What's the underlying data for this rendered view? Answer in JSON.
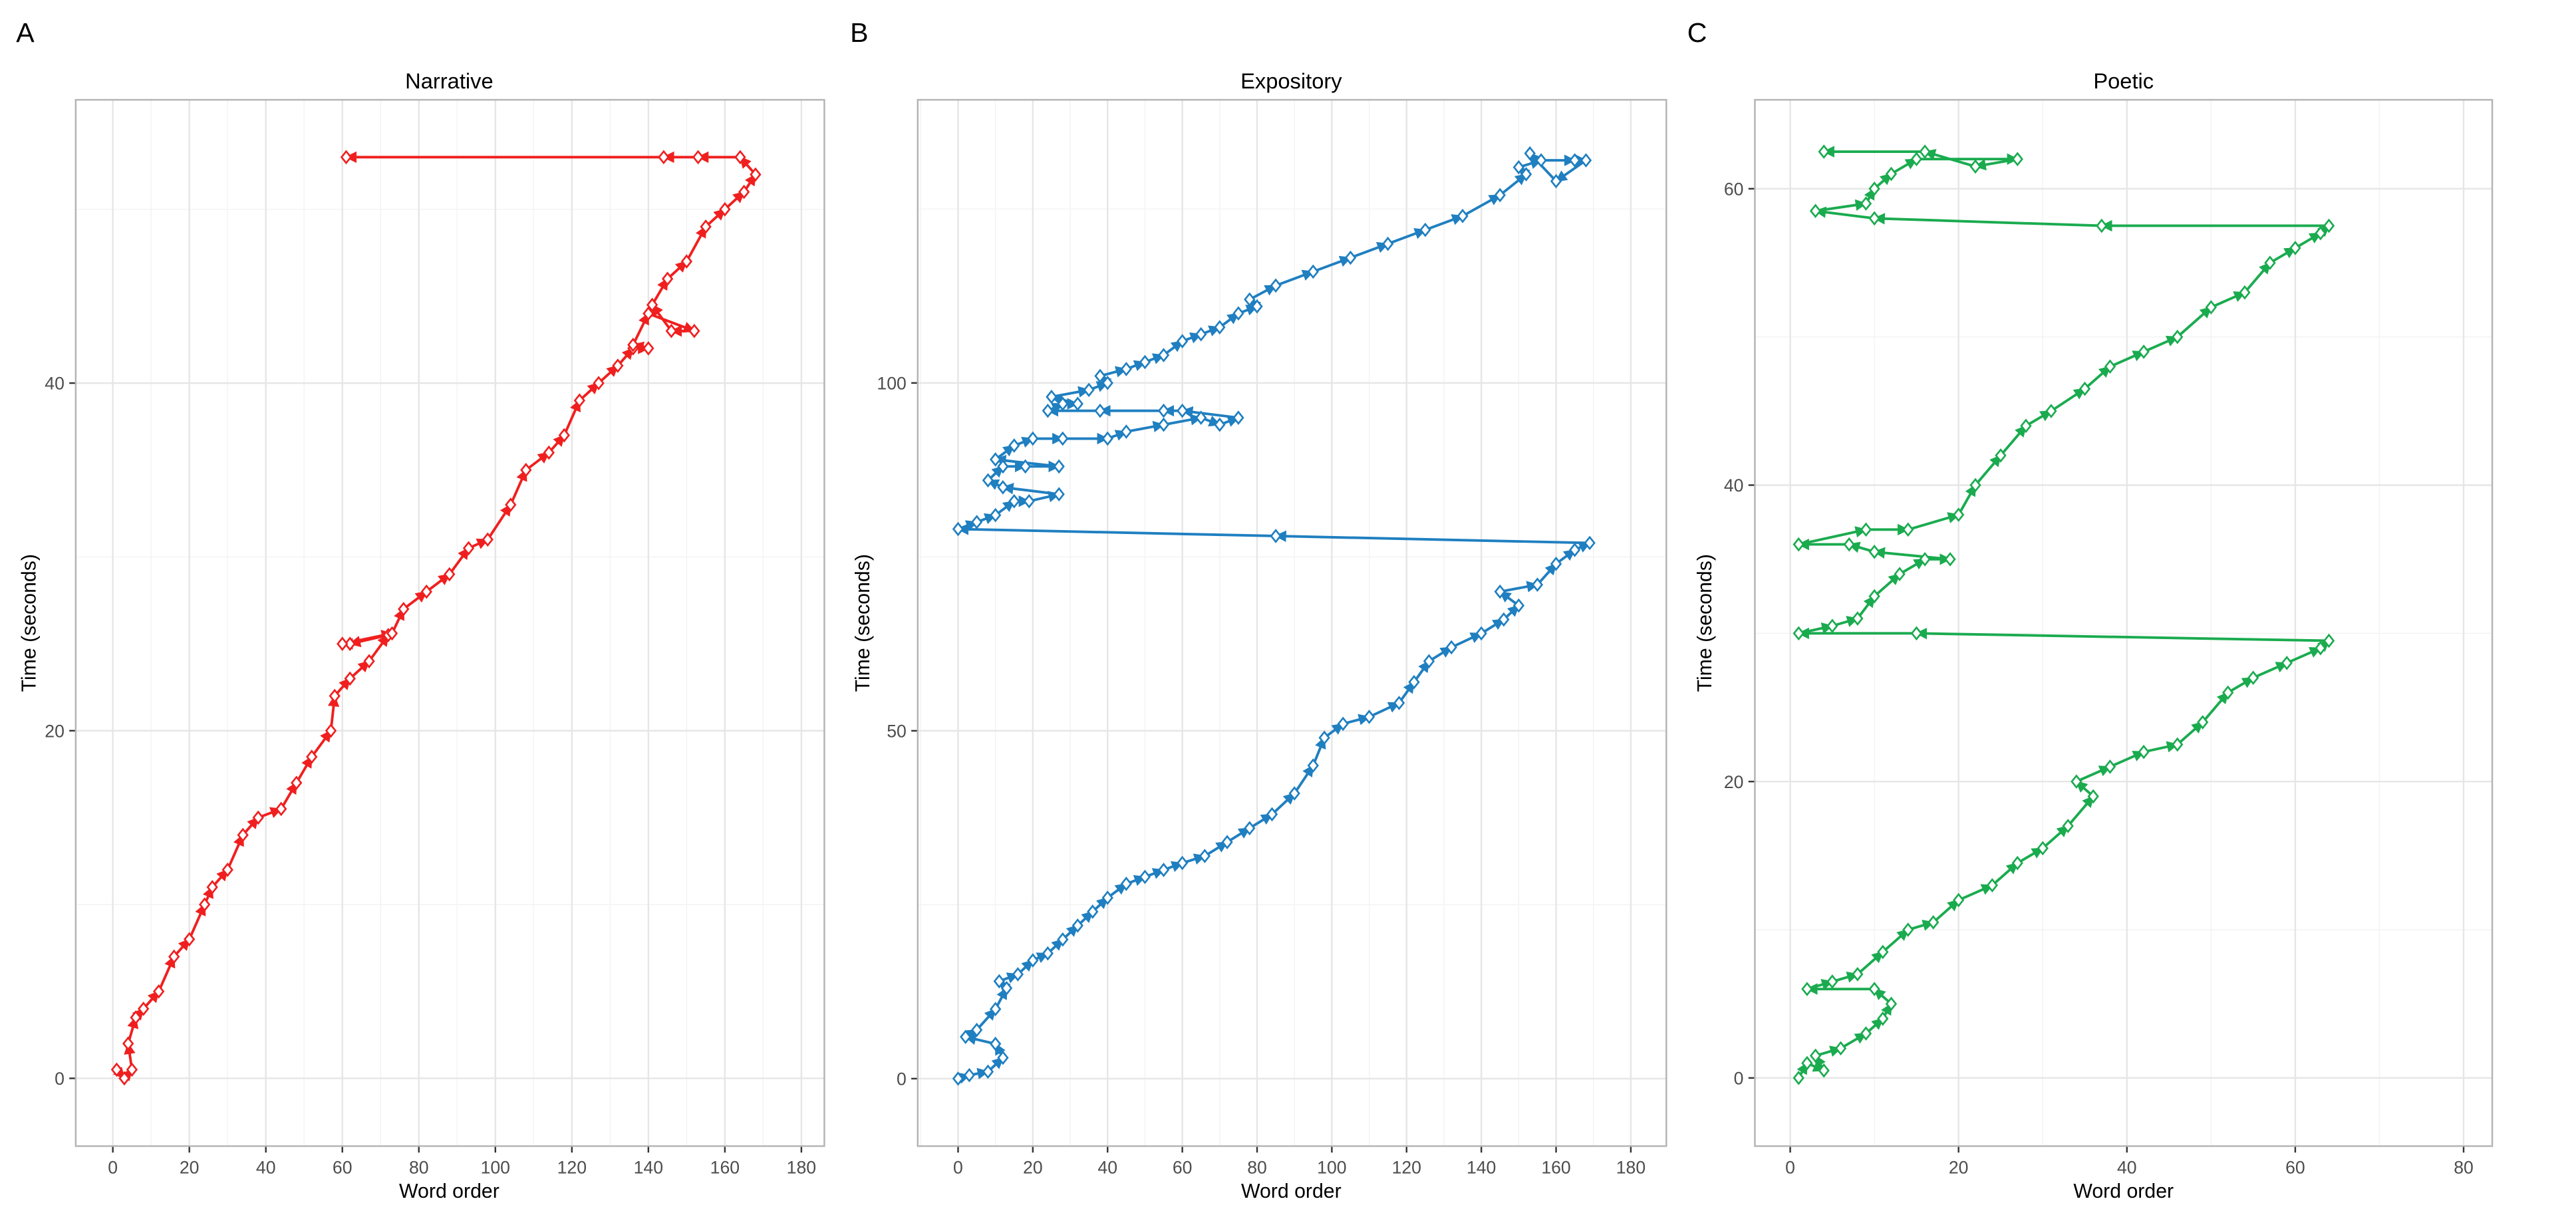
{
  "chart_data": [
    {
      "panel_label": "A",
      "type": "line",
      "title": "Narrative",
      "xlabel": "Word order",
      "ylabel": "Time (seconds)",
      "xlim": [
        -9.7,
        186
      ],
      "ylim": [
        -3.9,
        56.3
      ],
      "xticks": [
        0,
        20,
        40,
        60,
        80,
        100,
        120,
        140,
        160,
        180
      ],
      "yticks": [
        0,
        20,
        40
      ],
      "grid": true,
      "color": "#f01f1f",
      "points": [
        [
          1,
          0.5
        ],
        [
          3,
          0
        ],
        [
          5,
          0.5
        ],
        [
          4,
          2
        ],
        [
          6,
          3.5
        ],
        [
          8,
          4
        ],
        [
          12,
          5
        ],
        [
          16,
          7
        ],
        [
          20,
          8
        ],
        [
          24,
          10
        ],
        [
          26,
          11
        ],
        [
          30,
          12
        ],
        [
          34,
          14
        ],
        [
          38,
          15
        ],
        [
          44,
          15.5
        ],
        [
          48,
          17
        ],
        [
          52,
          18.5
        ],
        [
          57,
          20
        ],
        [
          58,
          22
        ],
        [
          62,
          23
        ],
        [
          67,
          24
        ],
        [
          72,
          25.5
        ],
        [
          62,
          25
        ],
        [
          60,
          25
        ],
        [
          73,
          25.6
        ],
        [
          76,
          27
        ],
        [
          82,
          28
        ],
        [
          88,
          29
        ],
        [
          93,
          30.5
        ],
        [
          98,
          31
        ],
        [
          104,
          33
        ],
        [
          108,
          35
        ],
        [
          114,
          36
        ],
        [
          118,
          37
        ],
        [
          122,
          39
        ],
        [
          127,
          40
        ],
        [
          132,
          41
        ],
        [
          136,
          42
        ],
        [
          140,
          42
        ],
        [
          136,
          42.2
        ],
        [
          140,
          44
        ],
        [
          152,
          43
        ],
        [
          146,
          43
        ],
        [
          141,
          44.5
        ],
        [
          145,
          46
        ],
        [
          150,
          47
        ],
        [
          155,
          49
        ],
        [
          160,
          50
        ],
        [
          165,
          51
        ],
        [
          168,
          52
        ],
        [
          164,
          53
        ],
        [
          153,
          53
        ],
        [
          144,
          53
        ],
        [
          61,
          53
        ]
      ]
    },
    {
      "panel_label": "B",
      "type": "line",
      "title": "Expository",
      "xlabel": "Word order",
      "ylabel": "Time (seconds)",
      "xlim": [
        -10.8,
        189.5
      ],
      "ylim": [
        -9.7,
        140.7
      ],
      "xticks": [
        0,
        20,
        40,
        60,
        80,
        100,
        120,
        140,
        160,
        180
      ],
      "yticks": [
        0,
        50,
        100
      ],
      "grid": true,
      "color": "#1f7fc0",
      "points": [
        [
          0,
          0
        ],
        [
          3,
          0.5
        ],
        [
          8,
          1
        ],
        [
          12,
          3
        ],
        [
          10,
          5
        ],
        [
          2,
          6
        ],
        [
          5,
          7
        ],
        [
          10,
          10
        ],
        [
          13,
          13
        ],
        [
          11,
          14
        ],
        [
          16,
          15
        ],
        [
          20,
          17
        ],
        [
          24,
          18
        ],
        [
          28,
          20
        ],
        [
          32,
          22
        ],
        [
          36,
          24
        ],
        [
          40,
          26
        ],
        [
          45,
          28
        ],
        [
          50,
          29
        ],
        [
          55,
          30
        ],
        [
          60,
          31
        ],
        [
          66,
          32
        ],
        [
          72,
          34
        ],
        [
          78,
          36
        ],
        [
          84,
          38
        ],
        [
          90,
          41
        ],
        [
          95,
          45
        ],
        [
          98,
          49
        ],
        [
          103,
          51
        ],
        [
          110,
          52
        ],
        [
          118,
          54
        ],
        [
          122,
          57
        ],
        [
          126,
          60
        ],
        [
          132,
          62
        ],
        [
          140,
          64
        ],
        [
          146,
          66
        ],
        [
          150,
          68
        ],
        [
          145,
          70
        ],
        [
          155,
          71
        ],
        [
          160,
          74
        ],
        [
          165,
          76
        ],
        [
          169,
          77
        ],
        [
          85,
          78
        ],
        [
          0,
          79
        ],
        [
          5,
          80
        ],
        [
          10,
          81
        ],
        [
          15,
          83
        ],
        [
          19,
          83
        ],
        [
          27,
          84
        ],
        [
          12,
          85
        ],
        [
          8,
          86
        ],
        [
          12,
          88
        ],
        [
          18,
          88
        ],
        [
          27,
          88
        ],
        [
          10,
          89
        ],
        [
          15,
          91
        ],
        [
          20,
          92
        ],
        [
          28,
          92
        ],
        [
          40,
          92
        ],
        [
          45,
          93
        ],
        [
          55,
          94
        ],
        [
          65,
          95
        ],
        [
          70,
          94
        ],
        [
          75,
          95
        ],
        [
          60,
          96
        ],
        [
          55,
          96
        ],
        [
          38,
          96
        ],
        [
          24,
          96
        ],
        [
          28,
          97
        ],
        [
          32,
          97
        ],
        [
          25,
          98
        ],
        [
          35,
          99
        ],
        [
          40,
          100
        ],
        [
          38,
          101
        ],
        [
          45,
          102
        ],
        [
          50,
          103
        ],
        [
          55,
          104
        ],
        [
          60,
          106
        ],
        [
          65,
          107
        ],
        [
          70,
          108
        ],
        [
          75,
          110
        ],
        [
          80,
          111
        ],
        [
          78,
          112
        ],
        [
          85,
          114
        ],
        [
          95,
          116
        ],
        [
          105,
          118
        ],
        [
          115,
          120
        ],
        [
          125,
          122
        ],
        [
          135,
          124
        ],
        [
          145,
          127
        ],
        [
          152,
          130
        ],
        [
          150,
          131
        ],
        [
          156,
          132
        ],
        [
          165,
          132
        ],
        [
          168,
          132
        ],
        [
          160,
          129
        ],
        [
          153,
          133
        ]
      ]
    },
    {
      "panel_label": "C",
      "type": "line",
      "title": "Poetic",
      "xlabel": "Word order",
      "ylabel": "Time (seconds)",
      "xlim": [
        -4.2,
        83.4
      ],
      "ylim": [
        -4.6,
        66
      ],
      "xticks": [
        0,
        20,
        40,
        60,
        80
      ],
      "yticks": [
        0,
        20,
        40,
        60
      ],
      "grid": true,
      "color": "#1aab4f",
      "points": [
        [
          1,
          0
        ],
        [
          2,
          1
        ],
        [
          4,
          0.5
        ],
        [
          3,
          1.5
        ],
        [
          6,
          2
        ],
        [
          9,
          3
        ],
        [
          11,
          4
        ],
        [
          12,
          5
        ],
        [
          10,
          6
        ],
        [
          2,
          6
        ],
        [
          5,
          6.5
        ],
        [
          8,
          7
        ],
        [
          11,
          8.5
        ],
        [
          14,
          10
        ],
        [
          17,
          10.5
        ],
        [
          20,
          12
        ],
        [
          24,
          13
        ],
        [
          27,
          14.5
        ],
        [
          30,
          15.5
        ],
        [
          33,
          17
        ],
        [
          36,
          19
        ],
        [
          34,
          20
        ],
        [
          38,
          21
        ],
        [
          42,
          22
        ],
        [
          46,
          22.5
        ],
        [
          49,
          24
        ],
        [
          52,
          26
        ],
        [
          55,
          27
        ],
        [
          59,
          28
        ],
        [
          63,
          29
        ],
        [
          64,
          29.5
        ],
        [
          15,
          30
        ],
        [
          1,
          30
        ],
        [
          5,
          30.5
        ],
        [
          8,
          31
        ],
        [
          10,
          32.5
        ],
        [
          13,
          34
        ],
        [
          16,
          35
        ],
        [
          19,
          35
        ],
        [
          10,
          35.5
        ],
        [
          7,
          36
        ],
        [
          1,
          36
        ],
        [
          9,
          37
        ],
        [
          14,
          37
        ],
        [
          20,
          38
        ],
        [
          22,
          40
        ],
        [
          25,
          42
        ],
        [
          28,
          44
        ],
        [
          31,
          45
        ],
        [
          35,
          46.5
        ],
        [
          38,
          48
        ],
        [
          42,
          49
        ],
        [
          46,
          50
        ],
        [
          50,
          52
        ],
        [
          54,
          53
        ],
        [
          57,
          55
        ],
        [
          60,
          56
        ],
        [
          63,
          57
        ],
        [
          64,
          57.5
        ],
        [
          37,
          57.5
        ],
        [
          10,
          58
        ],
        [
          3,
          58.5
        ],
        [
          9,
          59
        ],
        [
          10,
          60
        ],
        [
          12,
          61
        ],
        [
          15,
          62
        ],
        [
          27,
          62
        ],
        [
          22,
          61.5
        ],
        [
          16,
          62.5
        ],
        [
          4,
          62.5
        ]
      ]
    }
  ]
}
